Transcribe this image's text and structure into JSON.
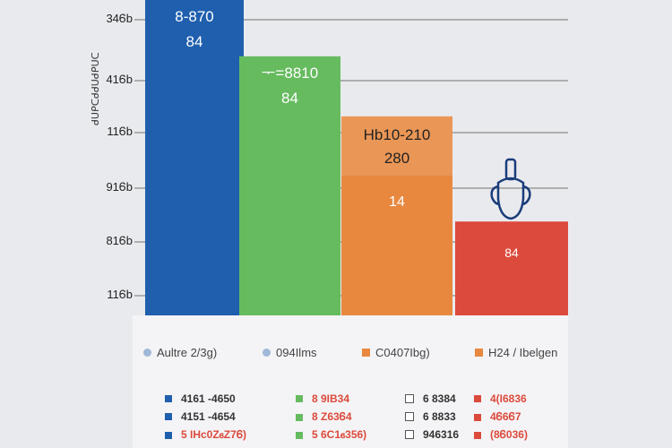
{
  "colors": {
    "blue": "#1f5fae",
    "green": "#66bb5f",
    "orange": "#e8883f",
    "red": "#dc4a3c",
    "grid": "#9a9a9a",
    "icon": "#1a3d7a"
  },
  "chart_data": {
    "type": "bar",
    "ylabel": "ᑯᑌᑭᑕᑯᑯᑌᑯᑭᑌᑕ",
    "y_ticks": [
      "34Ꮾb",
      "41Ꮾb",
      "11Ꮾb",
      "91Ꮾb",
      "81Ꮾb",
      "11Ꮾb"
    ],
    "series": [
      {
        "value": 84,
        "label_top": "8-870",
        "label_bottom": "84",
        "color": "#1f5fae"
      },
      {
        "value": 69,
        "label_top": "ᅮ=8810",
        "label_bottom": "84",
        "color": "#66bb5f"
      },
      {
        "value": 53,
        "label_top": "Hb10-210",
        "label_bottom": "280",
        "label_mid": "14",
        "color": "#e8883f"
      },
      {
        "value": 25,
        "label_top": "",
        "label_bottom": "84",
        "color": "#dc4a3c"
      }
    ],
    "ylim": [
      0,
      84
    ],
    "legend": [
      {
        "label": "Aultre 2/3g)",
        "color": "#9fb8d8"
      },
      {
        "label": "094Ilms",
        "color": "#9fb8d8"
      },
      {
        "label": "C0407Ibg)",
        "color": "#e8883f"
      },
      {
        "label": "H24 / Ibelgen",
        "color": "#e8883f"
      }
    ],
    "table": [
      [
        {
          "text": "4161 -4650",
          "color": "#333333",
          "swatch": "#1f5fae"
        },
        {
          "text": "8 9IB34",
          "color": "#dc4a3c",
          "swatch": "#66bb5f"
        },
        {
          "text": "6 8384",
          "color": "#333333",
          "swatch": "#ffffff"
        },
        {
          "text": "4(I6836",
          "color": "#dc4a3c",
          "swatch": "#dc4a3c"
        }
      ],
      [
        {
          "text": "4151 -4654",
          "color": "#333333",
          "swatch": "#1f5fae"
        },
        {
          "text": "8 Z63Ꮾ4",
          "color": "#dc4a3c",
          "swatch": "#66bb5f"
        },
        {
          "text": "6 8833",
          "color": "#333333",
          "swatch": "#ffffff"
        },
        {
          "text": "4Ꮾ6Ꮾ7",
          "color": "#dc4a3c",
          "swatch": "#dc4a3c"
        }
      ],
      [
        {
          "text": "5 IHc0ZꮾZ7Ꮾ)",
          "color": "#dc4a3c",
          "swatch": "#1f5fae"
        },
        {
          "text": "5 6C1ꮾ356)",
          "color": "#dc4a3c",
          "swatch": "#66bb5f"
        },
        {
          "text": "946316",
          "color": "#333333",
          "swatch": "#ffffff"
        },
        {
          "text": "(8Ꮾ036)",
          "color": "#dc4a3c",
          "swatch": "#dc4a3c"
        }
      ]
    ]
  }
}
